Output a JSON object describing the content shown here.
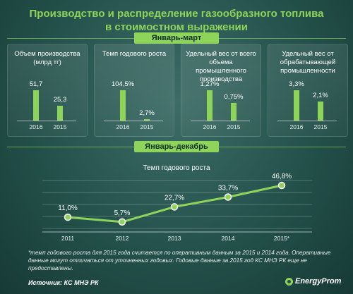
{
  "title_line1": "Производство и распределение газообразного топлива",
  "title_line2": "в стоимостном выражении",
  "section1_label": "Январь-март",
  "section2_label": "Январь-декабрь",
  "colors": {
    "accent": "#8fd45a",
    "background": "#24514b",
    "text": "#ffffff"
  },
  "chart_data": [
    {
      "type": "bar",
      "title": "Объем производства (млрд тг)",
      "categories": [
        "2016",
        "2015"
      ],
      "values": [
        51.7,
        25.3
      ],
      "value_labels": [
        "51,7",
        "25,3"
      ]
    },
    {
      "type": "bar",
      "title": "Темп годового роста",
      "categories": [
        "2016",
        "2015"
      ],
      "values": [
        104.5,
        2.7
      ],
      "value_labels": [
        "104,5%",
        "2,7%"
      ]
    },
    {
      "type": "bar",
      "title": "Удельный вес от всего объема промышленного производства",
      "categories": [
        "2016",
        "2015"
      ],
      "values": [
        1.27,
        0.75
      ],
      "value_labels": [
        "1,27%",
        "0,75%"
      ]
    },
    {
      "type": "bar",
      "title": "Удельный вес от обрабатывающей промышленности",
      "categories": [
        "2016",
        "2015"
      ],
      "values": [
        3.3,
        2.1
      ],
      "value_labels": [
        "3,3%",
        "2,1%"
      ]
    },
    {
      "type": "line",
      "title": "Темп годового роста",
      "x": [
        "2011",
        "2012",
        "2013",
        "2014",
        "2015*"
      ],
      "values": [
        11.0,
        5.7,
        22.7,
        33.7,
        46.8
      ],
      "value_labels": [
        "11,0%",
        "5,7%",
        "22,7%",
        "33,7%",
        "46,8%"
      ],
      "ylim": [
        0,
        50
      ],
      "grid": true
    }
  ],
  "panels": [
    {
      "label": "Объем производства (млрд тг)"
    },
    {
      "label": "Темп годового роста"
    },
    {
      "label": "Удельный вес от всего объема промышленного производства"
    },
    {
      "label": "Удельный вес от обрабатывающей промышленности"
    }
  ],
  "note": "*темп годового роста для 2015 года считается по оперативным данным за 2015 и 2014 года. Оперативные данные могут отличаться от уточненных годовых. Годовые данные за 2015 год КС МНЭ РК еще не предоставлены.",
  "source": "Источник: КС МНЭ РК",
  "brand": "EnergyProm"
}
